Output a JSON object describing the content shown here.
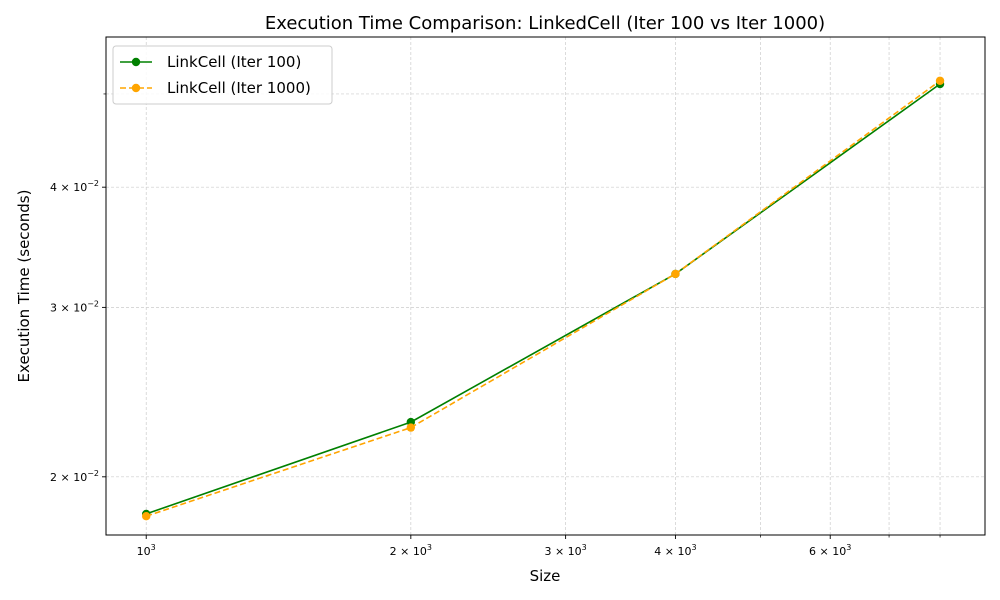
{
  "chart_data": {
    "type": "line",
    "title": "Execution Time Comparison: LinkedCell (Iter 100 vs Iter 1000)",
    "xlabel": "Size",
    "ylabel": "Execution Time (seconds)",
    "x_scale": "log",
    "y_scale": "log",
    "grid": true,
    "legend_position": "top-left",
    "xlim": [
      900,
      9000
    ],
    "ylim": [
      0.0174,
      0.0573
    ],
    "x_ticks_major": [
      {
        "value": 1000,
        "mantissa": "",
        "exp": "3"
      },
      {
        "value": 2000,
        "mantissa": "2",
        "exp": "3"
      },
      {
        "value": 3000,
        "mantissa": "3",
        "exp": "3"
      },
      {
        "value": 4000,
        "mantissa": "4",
        "exp": "3"
      },
      {
        "value": 6000,
        "mantissa": "6",
        "exp": "3"
      }
    ],
    "x_ticks_minor": [
      5000,
      7000,
      8000
    ],
    "y_ticks_major": [
      {
        "value": 0.02,
        "mantissa": "2",
        "exp": "−2"
      },
      {
        "value": 0.03,
        "mantissa": "3",
        "exp": "−2"
      },
      {
        "value": 0.04,
        "mantissa": "4",
        "exp": "−2"
      }
    ],
    "y_ticks_minor": [
      0.05
    ],
    "x": [
      1000,
      2000,
      4000,
      8000
    ],
    "series": [
      {
        "name": "LinkCell (Iter 100)",
        "values": [
          0.0183,
          0.0228,
          0.0325,
          0.0512
        ],
        "color": "#008000",
        "dash": "solid"
      },
      {
        "name": "LinkCell (Iter 1000)",
        "values": [
          0.0182,
          0.0225,
          0.0325,
          0.0516
        ],
        "color": "#ffa500",
        "dash": "dashed"
      }
    ]
  }
}
